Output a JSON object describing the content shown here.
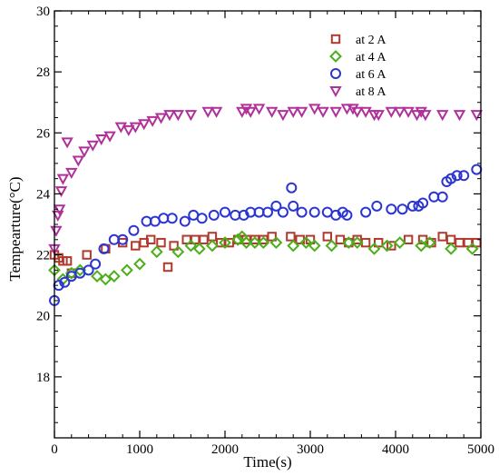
{
  "chart_data": {
    "type": "scatter",
    "title": "",
    "xlabel": "Time(s)",
    "ylabel": "Tempearture(°C)",
    "xlim": [
      0,
      5000
    ],
    "ylim": [
      16,
      30
    ],
    "xticks": [
      0,
      1000,
      2000,
      3000,
      4000,
      5000
    ],
    "yticks": [
      18,
      20,
      22,
      24,
      26,
      28,
      30
    ],
    "grid": false,
    "legend_position": "top-right",
    "series": [
      {
        "name": "at 2 A",
        "marker": "square",
        "color": "#b03a2e",
        "x": [
          0,
          50,
          100,
          150,
          200,
          380,
          600,
          800,
          950,
          1050,
          1130,
          1250,
          1330,
          1400,
          1550,
          1650,
          1750,
          1850,
          1950,
          2050,
          2150,
          2250,
          2350,
          2450,
          2550,
          2770,
          2880,
          3000,
          3200,
          3350,
          3450,
          3550,
          3650,
          3800,
          3950,
          4150,
          4320,
          4420,
          4550,
          4650,
          4750,
          4850,
          4950
        ],
        "y": [
          22.0,
          21.9,
          21.8,
          21.8,
          21.4,
          22.0,
          22.2,
          22.4,
          22.3,
          22.4,
          22.5,
          22.4,
          21.6,
          22.3,
          22.5,
          22.5,
          22.5,
          22.6,
          22.4,
          22.4,
          22.5,
          22.5,
          22.5,
          22.5,
          22.6,
          22.6,
          22.5,
          22.5,
          22.6,
          22.5,
          22.4,
          22.5,
          22.4,
          22.4,
          22.3,
          22.5,
          22.5,
          22.4,
          22.6,
          22.5,
          22.4,
          22.4,
          22.4
        ]
      },
      {
        "name": "at 4 A",
        "marker": "diamond",
        "color": "#4caf1a",
        "x": [
          0,
          100,
          200,
          300,
          500,
          600,
          700,
          850,
          1000,
          1200,
          1450,
          1600,
          1700,
          1850,
          2000,
          2150,
          2200,
          2250,
          2350,
          2450,
          2600,
          2800,
          2950,
          3050,
          3250,
          3450,
          3550,
          3750,
          3900,
          4050,
          4300,
          4400,
          4650,
          4900
        ],
        "y": [
          21.5,
          21.2,
          21.4,
          21.5,
          21.3,
          21.2,
          21.3,
          21.5,
          21.7,
          22.1,
          22.1,
          22.3,
          22.2,
          22.3,
          22.4,
          22.5,
          22.6,
          22.4,
          22.4,
          22.4,
          22.4,
          22.3,
          22.4,
          22.3,
          22.3,
          22.4,
          22.4,
          22.2,
          22.3,
          22.4,
          22.3,
          22.4,
          22.2,
          22.2
        ]
      },
      {
        "name": "at 6 A",
        "marker": "circle",
        "color": "#2b35d1",
        "x": [
          0,
          50,
          120,
          200,
          300,
          400,
          480,
          580,
          700,
          800,
          930,
          1080,
          1180,
          1280,
          1380,
          1530,
          1630,
          1730,
          1870,
          2000,
          2120,
          2220,
          2300,
          2400,
          2500,
          2600,
          2680,
          2780,
          2800,
          2900,
          3050,
          3200,
          3300,
          3380,
          3430,
          3650,
          3780,
          3950,
          4080,
          4200,
          4270,
          4320,
          4450,
          4550,
          4600,
          4650,
          4720,
          4800,
          4950
        ],
        "y": [
          20.5,
          21.0,
          21.1,
          21.3,
          21.4,
          21.5,
          21.7,
          22.2,
          22.5,
          22.5,
          22.8,
          23.1,
          23.1,
          23.2,
          23.2,
          23.1,
          23.3,
          23.2,
          23.3,
          23.4,
          23.3,
          23.3,
          23.4,
          23.4,
          23.4,
          23.6,
          23.4,
          24.2,
          23.6,
          23.4,
          23.4,
          23.4,
          23.3,
          23.4,
          23.3,
          23.4,
          23.6,
          23.5,
          23.5,
          23.6,
          23.6,
          23.7,
          23.9,
          23.9,
          24.4,
          24.5,
          24.6,
          24.6,
          24.8
        ]
      },
      {
        "name": "at 8 A",
        "marker": "triangle-down",
        "color": "#b0309a",
        "x": [
          0,
          20,
          40,
          60,
          80,
          100,
          150,
          200,
          280,
          350,
          450,
          550,
          650,
          780,
          870,
          950,
          1050,
          1150,
          1250,
          1350,
          1450,
          1600,
          1800,
          1900,
          2200,
          2250,
          2300,
          2400,
          2550,
          2680,
          2800,
          2900,
          3050,
          3150,
          3300,
          3430,
          3500,
          3550,
          3650,
          3750,
          3800,
          3950,
          4050,
          4150,
          4250,
          4300,
          4350,
          4550,
          4750,
          4950
        ],
        "y": [
          22.2,
          22.8,
          23.3,
          23.5,
          24.1,
          24.5,
          25.7,
          24.7,
          25.1,
          25.4,
          25.6,
          25.8,
          25.9,
          26.2,
          26.1,
          26.2,
          26.3,
          26.4,
          26.5,
          26.6,
          26.6,
          26.6,
          26.7,
          26.7,
          26.7,
          26.8,
          26.7,
          26.8,
          26.7,
          26.6,
          26.7,
          26.7,
          26.8,
          26.7,
          26.7,
          26.8,
          26.8,
          26.7,
          26.7,
          26.6,
          26.6,
          26.7,
          26.7,
          26.7,
          26.6,
          26.7,
          26.6,
          26.6,
          26.6,
          26.6
        ]
      }
    ]
  }
}
